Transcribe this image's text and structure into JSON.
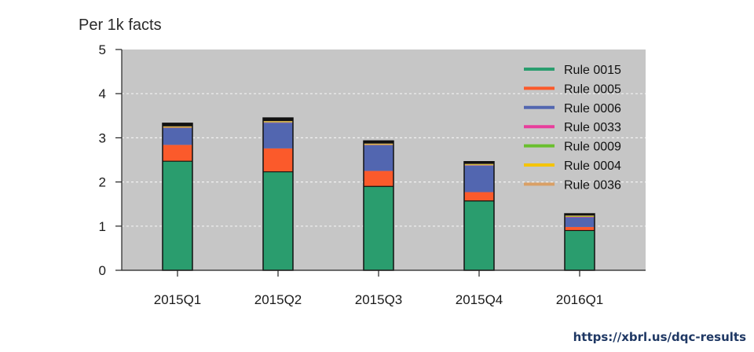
{
  "chart_data": {
    "type": "bar",
    "stacked": true,
    "ylabel": "Per 1k facts",
    "ylim": [
      0,
      5
    ],
    "yticks": [
      0,
      1,
      2,
      3,
      4,
      5
    ],
    "grid": true,
    "legend_position": "top-right",
    "categories": [
      "2015Q1",
      "2015Q2",
      "2015Q3",
      "2015Q4",
      "2016Q1"
    ],
    "series": [
      {
        "name": "Rule 0015",
        "color": "#2a9d6e",
        "values": [
          2.47,
          2.23,
          1.9,
          1.57,
          0.9
        ]
      },
      {
        "name": "Rule 0005",
        "color": "#fb5a2b",
        "values": [
          0.37,
          0.53,
          0.35,
          0.2,
          0.08
        ]
      },
      {
        "name": "Rule 0006",
        "color": "#5266b0",
        "values": [
          0.38,
          0.58,
          0.58,
          0.6,
          0.22
        ]
      },
      {
        "name": "Rule 0033",
        "color": "#e83e9c",
        "values": [
          0.01,
          0.01,
          0.01,
          0.01,
          0.01
        ]
      },
      {
        "name": "Rule 0009",
        "color": "#6abf2e",
        "values": [
          0.01,
          0.01,
          0.01,
          0.01,
          0.01
        ]
      },
      {
        "name": "Rule 0004",
        "color": "#f5c400",
        "values": [
          0.01,
          0.01,
          0.01,
          0.01,
          0.01
        ]
      },
      {
        "name": "Rule 0036",
        "color": "#d9a066",
        "values": [
          0.01,
          0.01,
          0.01,
          0.01,
          0.01
        ]
      }
    ],
    "cap_values": [
      0.07,
      0.07,
      0.06,
      0.05,
      0.04
    ]
  },
  "source": {
    "text": "https://xbrl.us/dqc-results"
  }
}
